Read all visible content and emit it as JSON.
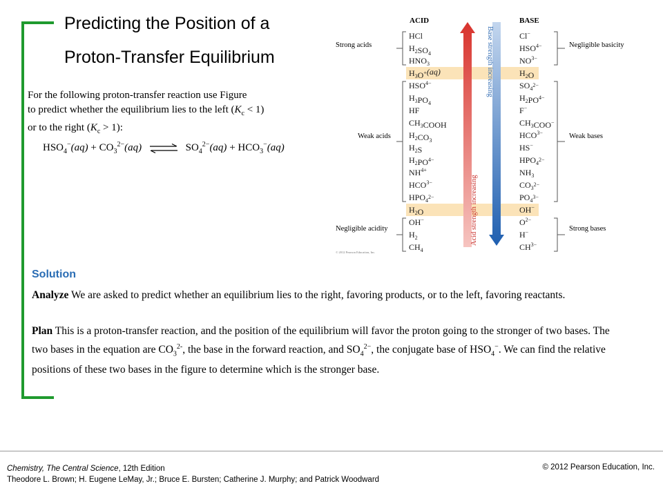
{
  "title": {
    "line1": "Predicting the Position of a",
    "line2": "Proton-Transfer Equilibrium"
  },
  "prompt": {
    "line1": "For the following proton-transfer reaction use Figure",
    "line2a": "to predict whether the equilibrium lies to the left (",
    "line2b": "K",
    "line2c": "c",
    "line2d": " < 1)",
    "line3a": "or to the right (",
    "line3b": "K",
    "line3c": "c",
    "line3d": " > 1):"
  },
  "equation": {
    "r1": "HSO",
    "r1sub": "4",
    "r1sup": "−",
    "r1phase": "(aq)",
    "plus1": " + ",
    "r2": "CO",
    "r2sub": "3",
    "r2sup": "2−",
    "r2phase": "(aq)",
    "p1": "SO",
    "p1sub": "4",
    "p1sup": "2−",
    "p1phase": "(aq)",
    "plus2": " + ",
    "p2": "HCO",
    "p2sub": "3",
    "p2sup": "−",
    "p2phase": "(aq)"
  },
  "figure": {
    "acid_header": "ACID",
    "base_header": "BASE",
    "acids": [
      "HCl",
      "H2SO4",
      "HNO3",
      "H3O+(aq)",
      "HSO4−",
      "H3PO4",
      "HF",
      "CH3COOH",
      "H2CO3",
      "H2S",
      "H2PO4−",
      "NH4+",
      "HCO3−",
      "HPO42−",
      "H2O",
      "OH−",
      "H2",
      "CH4"
    ],
    "bases": [
      "Cl−",
      "HSO4−",
      "NO3−",
      "H2O",
      "SO42−",
      "H2PO4−",
      "F−",
      "CH3COO−",
      "HCO3−",
      "HS−",
      "HPO42−",
      "NH3",
      "CO32−",
      "PO43−",
      "OH−",
      "O2−",
      "H−",
      "CH3−"
    ],
    "left_labels": [
      "Strong acids",
      "Weak acids",
      "Negligible acidity"
    ],
    "right_labels": [
      "Negligible basicity",
      "Weak bases",
      "Strong bases"
    ],
    "acid_arrow_label": "Acid strength increasing",
    "base_arrow_label": "Base strength increasing",
    "copyright": "© 2012 Pearson Education, Inc.",
    "acid_color": "#c8302c",
    "base_color": "#2f6bb3",
    "highlight_color": "#fbe3b8"
  },
  "solution": {
    "heading": "Solution",
    "analyze_label": "Analyze",
    "analyze_text": " We are asked to predict whether an equilibrium lies to the right, favoring products, or to the left, favoring reactants.",
    "plan_label": "Plan",
    "plan_text1": " This is a proton-transfer reaction, and the position of the equilibrium will favor the proton going to the stronger of two bases. The two bases in the equation are CO",
    "plan_sub1": "3",
    "plan_sup1": "2-",
    "plan_text2": ", the base in the forward reaction, and SO",
    "plan_sub2": "4",
    "plan_sup2": "2−",
    "plan_text3": ", the conjugate base of HSO",
    "plan_sub3": "4",
    "plan_sup3": "−",
    "plan_text4": ". We can find the relative positions of these two bases in the figure to determine which is the stronger base."
  },
  "footer": {
    "book": "Chemistry, The Central Science",
    "edition": ", 12th Edition",
    "authors": "Theodore L. Brown; H. Eugene LeMay, Jr.; Bruce E. Bursten; Catherine J. Murphy; and Patrick Woodward",
    "copyright": "© 2012 Pearson Education, Inc."
  }
}
